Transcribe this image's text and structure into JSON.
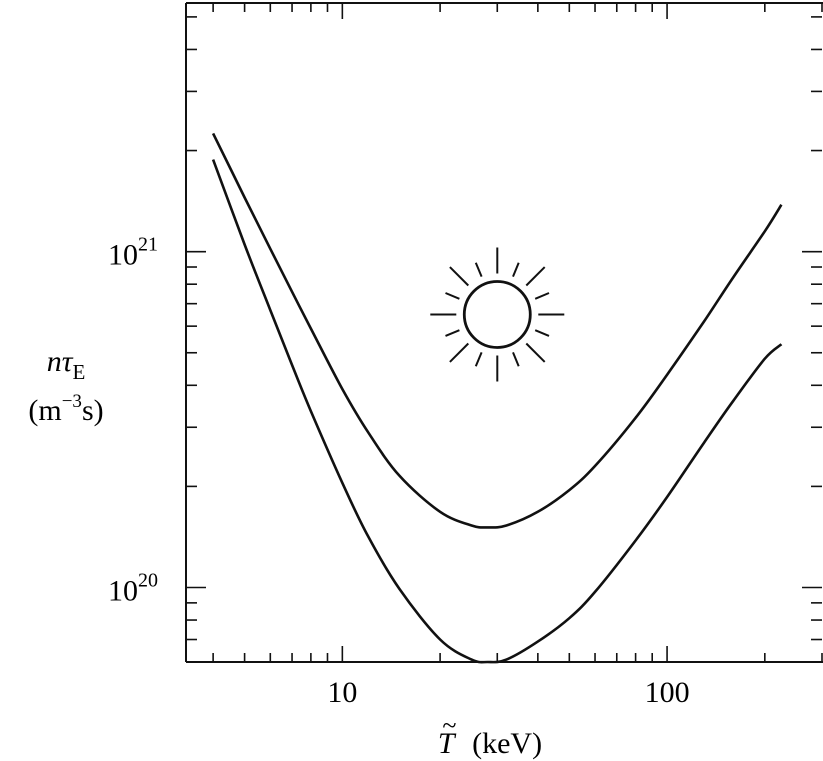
{
  "chart_data": {
    "type": "line",
    "title": "",
    "xlabel": {
      "symbol": "T",
      "symbol_accent": "~",
      "unit": "(keV)"
    },
    "ylabel": {
      "line1_var": "nτ",
      "line1_sub": "E",
      "line2_prefix": "(m",
      "line2_sup": "−3",
      "line2_suffix": "s)"
    },
    "x_scale": "log",
    "y_scale": "log",
    "xlim": [
      3.3,
      300
    ],
    "ylim": [
      6e+19,
      5.5e+21
    ],
    "x_ticks": [
      {
        "value": 10,
        "label": "10"
      },
      {
        "value": 100,
        "label": "100"
      }
    ],
    "y_ticks": [
      {
        "value": 1e+20,
        "base": "10",
        "exp": "20"
      },
      {
        "value": 1e+21,
        "base": "10",
        "exp": "21"
      }
    ],
    "grid": false,
    "legend": "none",
    "annotation": {
      "type": "sun-icon",
      "x": 30,
      "y": 6.5e+20
    },
    "series": [
      {
        "x": [
          4.0,
          5,
          6,
          7,
          8,
          10,
          12,
          15,
          20,
          25,
          28,
          32,
          40,
          50,
          60,
          80,
          100,
          130,
          160,
          200,
          225
        ],
        "y": [
          2.25e+21,
          1.45e+21,
          1.02e+21,
          7.6e+20,
          5.9e+20,
          3.9e+20,
          2.9e+20,
          2.15e+20,
          1.68e+20,
          1.53e+20,
          1.51e+20,
          1.53e+20,
          1.68e+20,
          1.95e+20,
          2.3e+20,
          3.2e+20,
          4.3e+20,
          6.2e+20,
          8.4e+20,
          1.15e+21,
          1.38e+21
        ]
      },
      {
        "x": [
          4.0,
          5,
          6,
          7,
          8,
          10,
          12,
          15,
          20,
          25,
          28,
          32,
          40,
          50,
          60,
          80,
          100,
          130,
          160,
          200,
          225
        ],
        "y": [
          1.88e+21,
          1.05e+21,
          6.7e+20,
          4.6e+20,
          3.35e+20,
          2.05e+20,
          1.42e+20,
          9.9e+19,
          7e+19,
          6.1e+19,
          6e+19,
          6.1e+19,
          6.9e+19,
          8.1e+19,
          9.7e+19,
          1.38e+20,
          1.86e+20,
          2.7e+20,
          3.6e+20,
          4.8e+20,
          5.3e+20
        ]
      }
    ]
  }
}
